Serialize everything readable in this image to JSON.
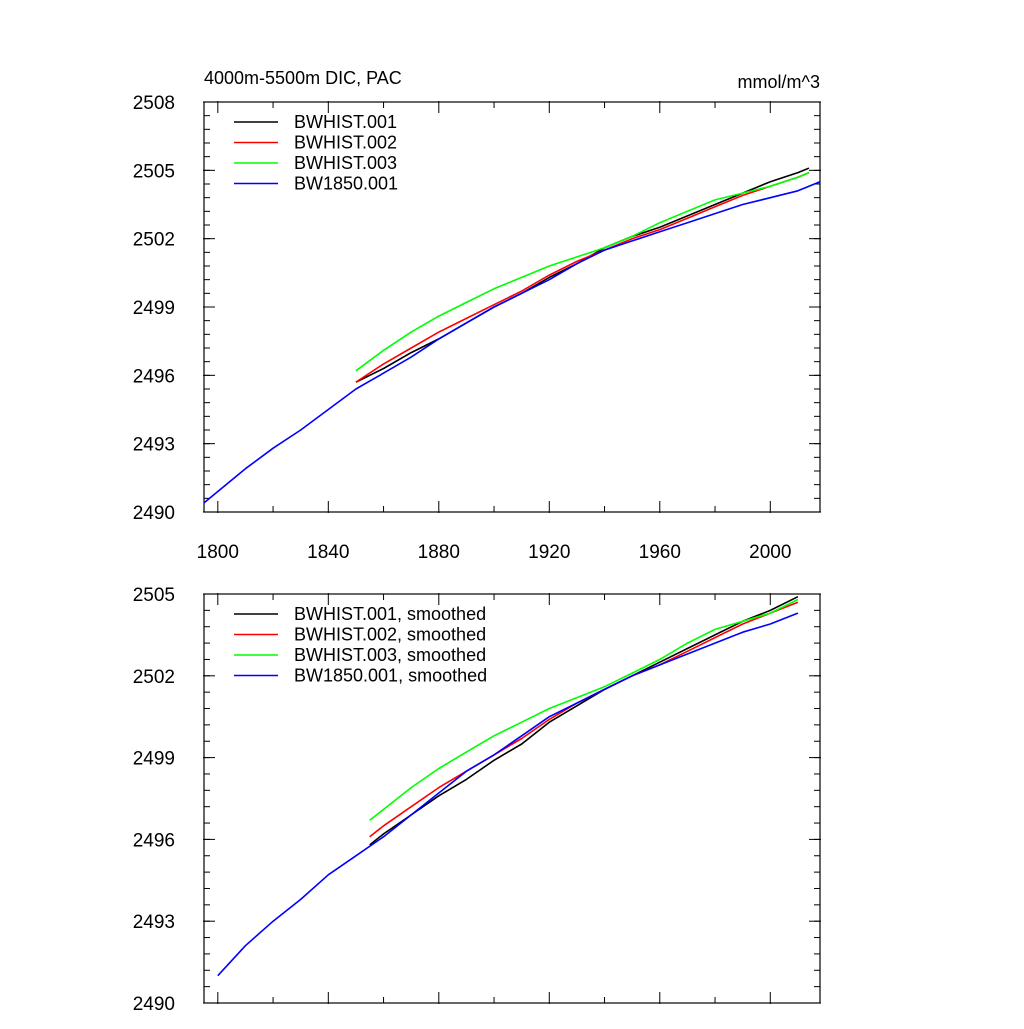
{
  "chart_data": [
    {
      "type": "line",
      "title": "4000m-5500m DIC, PAC",
      "units": "mmol/m^3",
      "xlim": [
        1795,
        2018
      ],
      "ylim": [
        2490,
        2508
      ],
      "xticks": [
        1800,
        1840,
        1880,
        1920,
        1960,
        2000
      ],
      "yticks": [
        2490,
        2493,
        2496,
        2499,
        2502,
        2505,
        2508
      ],
      "xticklabels": [
        "1800",
        "1840",
        "1880",
        "1920",
        "1960",
        "2000"
      ],
      "yticklabels": [
        "2490",
        "2493",
        "2496",
        "2499",
        "2502",
        "2505",
        "2508"
      ],
      "legend_position": "top-left",
      "series": [
        {
          "name": "BWHIST.001",
          "color": "#000000",
          "x": [
            1850,
            1860,
            1870,
            1880,
            1890,
            1900,
            1910,
            1920,
            1930,
            1940,
            1950,
            1960,
            1970,
            1980,
            1990,
            2000,
            2010,
            2014
          ],
          "y": [
            2495.7,
            2496.3,
            2497.0,
            2497.6,
            2498.3,
            2499.0,
            2499.6,
            2500.3,
            2500.9,
            2501.6,
            2502.1,
            2502.5,
            2503.0,
            2503.5,
            2504.0,
            2504.5,
            2504.9,
            2505.1
          ]
        },
        {
          "name": "BWHIST.002",
          "color": "#ff0000",
          "x": [
            1850,
            1860,
            1870,
            1880,
            1890,
            1900,
            1910,
            1920,
            1930,
            1940,
            1950,
            1960,
            1970,
            1980,
            1990,
            2000,
            2010,
            2014
          ],
          "y": [
            2495.7,
            2496.5,
            2497.2,
            2497.9,
            2498.5,
            2499.1,
            2499.7,
            2500.4,
            2501.0,
            2501.5,
            2502.0,
            2502.4,
            2502.9,
            2503.4,
            2503.9,
            2504.3,
            2504.7,
            2504.9
          ]
        },
        {
          "name": "BWHIST.003",
          "color": "#00ff00",
          "x": [
            1850,
            1860,
            1870,
            1880,
            1890,
            1900,
            1910,
            1920,
            1930,
            1940,
            1950,
            1960,
            1970,
            1980,
            1990,
            2000,
            2010,
            2014
          ],
          "y": [
            2496.2,
            2497.1,
            2497.9,
            2498.6,
            2499.2,
            2499.8,
            2500.3,
            2500.8,
            2501.2,
            2501.6,
            2502.1,
            2502.7,
            2503.2,
            2503.7,
            2504.0,
            2504.3,
            2504.7,
            2504.9
          ]
        },
        {
          "name": "BW1850.001",
          "color": "#0000ff",
          "x": [
            1795,
            1800,
            1810,
            1820,
            1830,
            1840,
            1850,
            1860,
            1870,
            1880,
            1890,
            1900,
            1910,
            1920,
            1930,
            1940,
            1950,
            1960,
            1970,
            1980,
            1990,
            2000,
            2010,
            2018
          ],
          "y": [
            2490.4,
            2490.9,
            2491.9,
            2492.8,
            2493.6,
            2494.5,
            2495.4,
            2496.1,
            2496.8,
            2497.6,
            2498.3,
            2499.0,
            2499.6,
            2500.2,
            2500.9,
            2501.5,
            2501.9,
            2502.3,
            2502.7,
            2503.1,
            2503.5,
            2503.8,
            2504.1,
            2504.5
          ]
        }
      ]
    },
    {
      "type": "line",
      "xlim": [
        1795,
        2018
      ],
      "ylim": [
        2490,
        2505
      ],
      "xticks": [
        1800,
        1840,
        1880,
        1920,
        1960,
        2000
      ],
      "yticks": [
        2490,
        2493,
        2496,
        2499,
        2502,
        2505
      ],
      "yticklabels": [
        "2490",
        "2493",
        "2496",
        "2499",
        "2502",
        "2505"
      ],
      "legend_position": "top-left",
      "series": [
        {
          "name": "BWHIST.001, smoothed",
          "color": "#000000",
          "x": [
            1855,
            1860,
            1870,
            1880,
            1890,
            1900,
            1910,
            1920,
            1930,
            1940,
            1950,
            1960,
            1970,
            1980,
            1990,
            2000,
            2010
          ],
          "y": [
            2495.8,
            2496.2,
            2496.9,
            2497.6,
            2498.2,
            2498.9,
            2499.5,
            2500.3,
            2500.9,
            2501.5,
            2502.0,
            2502.5,
            2503.0,
            2503.5,
            2504.0,
            2504.4,
            2504.9
          ]
        },
        {
          "name": "BWHIST.002, smoothed",
          "color": "#ff0000",
          "x": [
            1855,
            1860,
            1870,
            1880,
            1890,
            1900,
            1910,
            1920,
            1930,
            1940,
            1950,
            1960,
            1970,
            1980,
            1990,
            2000,
            2010
          ],
          "y": [
            2496.1,
            2496.5,
            2497.2,
            2497.9,
            2498.5,
            2499.1,
            2499.7,
            2500.4,
            2501.0,
            2501.5,
            2502.0,
            2502.4,
            2502.9,
            2503.4,
            2503.9,
            2504.3,
            2504.7
          ]
        },
        {
          "name": "BWHIST.003, smoothed",
          "color": "#00ff00",
          "x": [
            1855,
            1860,
            1870,
            1880,
            1890,
            1900,
            1910,
            1920,
            1930,
            1940,
            1950,
            1960,
            1970,
            1980,
            1990,
            2000,
            2010
          ],
          "y": [
            2496.7,
            2497.1,
            2497.9,
            2498.6,
            2499.2,
            2499.8,
            2500.3,
            2500.8,
            2501.2,
            2501.6,
            2502.1,
            2502.6,
            2503.2,
            2503.7,
            2504.0,
            2504.3,
            2504.8
          ]
        },
        {
          "name": "BW1850.001, smoothed",
          "color": "#0000ff",
          "x": [
            1800,
            1810,
            1820,
            1830,
            1840,
            1850,
            1860,
            1870,
            1880,
            1890,
            1900,
            1910,
            1920,
            1930,
            1940,
            1950,
            1960,
            1970,
            1980,
            1990,
            2000,
            2010
          ],
          "y": [
            2491.0,
            2492.1,
            2493.0,
            2493.8,
            2494.7,
            2495.4,
            2496.1,
            2496.9,
            2497.7,
            2498.5,
            2499.1,
            2499.8,
            2500.5,
            2501.0,
            2501.5,
            2502.0,
            2502.4,
            2502.8,
            2503.2,
            2503.6,
            2503.9,
            2504.3
          ]
        }
      ]
    }
  ]
}
